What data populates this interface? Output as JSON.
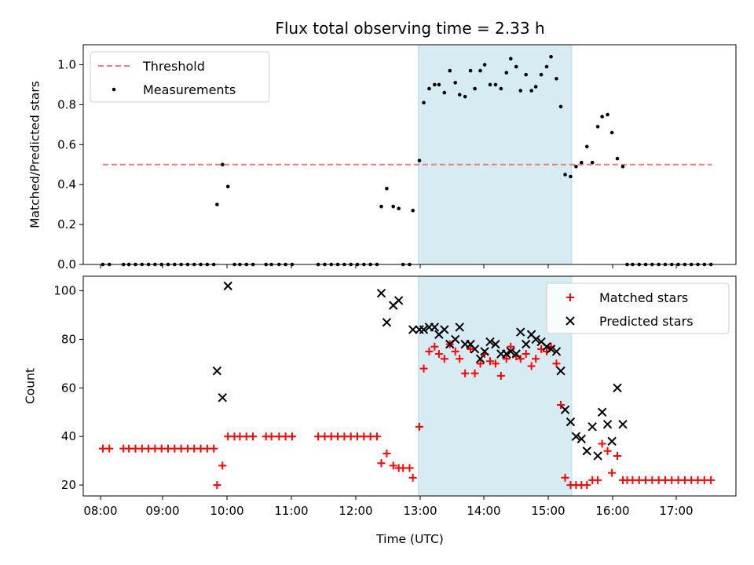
{
  "figure": {
    "title": "Flux total observing time = 2.33 h",
    "xlabel": "Time (UTC)"
  },
  "chart_data": [
    {
      "type": "scatter",
      "ylabel": "Matched/Predicted stars",
      "xlim": [
        "07:55",
        "17:55"
      ],
      "ylim": [
        0,
        1.1
      ],
      "yticks": [
        "0.0",
        "0.2",
        "0.4",
        "0.6",
        "0.8",
        "1.0"
      ],
      "xticks": [
        "08:00",
        "09:00",
        "10:00",
        "11:00",
        "12:00",
        "13:00",
        "14:00",
        "15:00",
        "16:00",
        "17:00"
      ],
      "highlight_span": {
        "from": "13:03",
        "to": "15:24"
      },
      "threshold": {
        "label": "Threshold",
        "value": 0.5,
        "from": "08:13",
        "to": "17:33",
        "color": "#f08080"
      },
      "legend": {
        "placement": "top-left",
        "entries": [
          "Threshold",
          "Measurements"
        ]
      },
      "series": [
        {
          "name": "Measurements",
          "color": "#000000",
          "points": [
            [
              "08:13",
              0
            ],
            [
              "08:19",
              0
            ],
            [
              "08:32",
              0
            ],
            [
              "08:37",
              0
            ],
            [
              "08:43",
              0
            ],
            [
              "08:49",
              0
            ],
            [
              "08:55",
              0
            ],
            [
              "09:01",
              0
            ],
            [
              "09:07",
              0
            ],
            [
              "09:13",
              0
            ],
            [
              "09:19",
              0
            ],
            [
              "09:25",
              0
            ],
            [
              "09:31",
              0
            ],
            [
              "09:37",
              0
            ],
            [
              "09:43",
              0
            ],
            [
              "09:49",
              0
            ],
            [
              "09:55",
              0
            ],
            [
              "09:58",
              0.3
            ],
            [
              "10:03",
              0.5
            ],
            [
              "10:08",
              0.39
            ],
            [
              "10:14",
              0
            ],
            [
              "10:19",
              0
            ],
            [
              "10:25",
              0
            ],
            [
              "10:31",
              0
            ],
            [
              "10:43",
              0
            ],
            [
              "10:48",
              0
            ],
            [
              "10:55",
              0
            ],
            [
              "11:01",
              0
            ],
            [
              "11:07",
              0
            ],
            [
              "11:31",
              0
            ],
            [
              "11:37",
              0
            ],
            [
              "11:43",
              0
            ],
            [
              "11:49",
              0
            ],
            [
              "11:55",
              0
            ],
            [
              "12:01",
              0
            ],
            [
              "12:07",
              0
            ],
            [
              "12:13",
              0
            ],
            [
              "12:19",
              0
            ],
            [
              "12:25",
              0
            ],
            [
              "12:29",
              0.29
            ],
            [
              "12:34",
              0.38
            ],
            [
              "12:40",
              0.29
            ],
            [
              "12:45",
              0.28
            ],
            [
              "12:49",
              0
            ],
            [
              "12:55",
              0
            ],
            [
              "12:58",
              0.27
            ],
            [
              "13:04",
              0.52
            ],
            [
              "13:08",
              0.81
            ],
            [
              "13:13",
              0.88
            ],
            [
              "13:18",
              0.9
            ],
            [
              "13:22",
              0.9
            ],
            [
              "13:27",
              0.86
            ],
            [
              "13:32",
              0.97
            ],
            [
              "13:37",
              0.91
            ],
            [
              "13:41",
              0.85
            ],
            [
              "13:46",
              0.84
            ],
            [
              "13:51",
              0.97
            ],
            [
              "13:55",
              0.88
            ],
            [
              "14:00",
              0.97
            ],
            [
              "14:04",
              1.0
            ],
            [
              "14:09",
              0.9
            ],
            [
              "14:14",
              0.9
            ],
            [
              "14:19",
              0.88
            ],
            [
              "14:24",
              0.96
            ],
            [
              "14:28",
              1.03
            ],
            [
              "14:33",
              0.99
            ],
            [
              "14:37",
              0.87
            ],
            [
              "14:42",
              0.95
            ],
            [
              "14:47",
              0.87
            ],
            [
              "14:51",
              0.89
            ],
            [
              "14:56",
              0.95
            ],
            [
              "15:01",
              0.99
            ],
            [
              "15:05",
              1.04
            ],
            [
              "15:10",
              0.93
            ],
            [
              "15:14",
              0.79
            ],
            [
              "15:18",
              0.45
            ],
            [
              "15:23",
              0.44
            ],
            [
              "15:28",
              0.49
            ],
            [
              "15:33",
              0.51
            ],
            [
              "15:38",
              0.59
            ],
            [
              "15:43",
              0.51
            ],
            [
              "15:48",
              0.69
            ],
            [
              "15:52",
              0.74
            ],
            [
              "15:57",
              0.75
            ],
            [
              "16:01",
              0.66
            ],
            [
              "16:06",
              0.53
            ],
            [
              "16:11",
              0.49
            ],
            [
              "16:15",
              0
            ],
            [
              "16:20",
              0
            ],
            [
              "16:26",
              0
            ],
            [
              "16:32",
              0
            ],
            [
              "16:38",
              0
            ],
            [
              "16:44",
              0
            ],
            [
              "16:50",
              0
            ],
            [
              "16:56",
              0
            ],
            [
              "17:02",
              0
            ],
            [
              "17:08",
              0
            ],
            [
              "17:14",
              0
            ],
            [
              "17:20",
              0
            ],
            [
              "17:26",
              0
            ],
            [
              "17:32",
              0
            ]
          ]
        }
      ]
    },
    {
      "type": "scatter",
      "ylabel": "Count",
      "xlim": [
        "07:55",
        "17:55"
      ],
      "ylim": [
        15.5,
        106
      ],
      "yticks": [
        "20",
        "40",
        "60",
        "80",
        "100"
      ],
      "xticks": [
        "08:00",
        "09:00",
        "10:00",
        "11:00",
        "12:00",
        "13:00",
        "14:00",
        "15:00",
        "16:00",
        "17:00"
      ],
      "highlight_span": {
        "from": "13:03",
        "to": "15:24"
      },
      "legend": {
        "placement": "top-right",
        "entries": [
          "Matched stars",
          "Predicted stars"
        ]
      },
      "series": [
        {
          "name": "Matched stars",
          "marker": "+",
          "color": "#ff0000",
          "points": [
            [
              "08:13",
              35
            ],
            [
              "08:19",
              35
            ],
            [
              "08:32",
              35
            ],
            [
              "08:37",
              35
            ],
            [
              "08:43",
              35
            ],
            [
              "08:49",
              35
            ],
            [
              "08:55",
              35
            ],
            [
              "09:01",
              35
            ],
            [
              "09:07",
              35
            ],
            [
              "09:13",
              35
            ],
            [
              "09:19",
              35
            ],
            [
              "09:25",
              35
            ],
            [
              "09:31",
              35
            ],
            [
              "09:37",
              35
            ],
            [
              "09:43",
              35
            ],
            [
              "09:49",
              35
            ],
            [
              "09:55",
              35
            ],
            [
              "09:58",
              20
            ],
            [
              "10:03",
              28
            ],
            [
              "10:08",
              40
            ],
            [
              "10:14",
              40
            ],
            [
              "10:19",
              40
            ],
            [
              "10:25",
              40
            ],
            [
              "10:31",
              40
            ],
            [
              "10:43",
              40
            ],
            [
              "10:48",
              40
            ],
            [
              "10:55",
              40
            ],
            [
              "11:01",
              40
            ],
            [
              "11:07",
              40
            ],
            [
              "11:31",
              40
            ],
            [
              "11:37",
              40
            ],
            [
              "11:43",
              40
            ],
            [
              "11:49",
              40
            ],
            [
              "11:55",
              40
            ],
            [
              "12:01",
              40
            ],
            [
              "12:07",
              40
            ],
            [
              "12:13",
              40
            ],
            [
              "12:19",
              40
            ],
            [
              "12:25",
              40
            ],
            [
              "12:29",
              29
            ],
            [
              "12:34",
              33
            ],
            [
              "12:40",
              28
            ],
            [
              "12:45",
              27
            ],
            [
              "12:49",
              27
            ],
            [
              "12:55",
              27
            ],
            [
              "12:58",
              23
            ],
            [
              "13:04",
              44
            ],
            [
              "13:08",
              68
            ],
            [
              "13:13",
              75
            ],
            [
              "13:18",
              77
            ],
            [
              "13:22",
              74
            ],
            [
              "13:27",
              72
            ],
            [
              "13:32",
              78
            ],
            [
              "13:37",
              75
            ],
            [
              "13:41",
              72
            ],
            [
              "13:46",
              66
            ],
            [
              "13:51",
              76
            ],
            [
              "13:55",
              66
            ],
            [
              "14:00",
              70
            ],
            [
              "14:04",
              74
            ],
            [
              "14:09",
              71
            ],
            [
              "14:14",
              70
            ],
            [
              "14:19",
              65
            ],
            [
              "14:24",
              72
            ],
            [
              "14:28",
              77
            ],
            [
              "14:33",
              73
            ],
            [
              "14:37",
              72
            ],
            [
              "14:42",
              74
            ],
            [
              "14:47",
              69
            ],
            [
              "14:51",
              72
            ],
            [
              "14:56",
              76
            ],
            [
              "15:01",
              75
            ],
            [
              "15:05",
              77
            ],
            [
              "15:10",
              70
            ],
            [
              "15:14",
              53
            ],
            [
              "15:18",
              23
            ],
            [
              "15:23",
              20
            ],
            [
              "15:28",
              20
            ],
            [
              "15:33",
              20
            ],
            [
              "15:38",
              20
            ],
            [
              "15:43",
              22
            ],
            [
              "15:48",
              22
            ],
            [
              "15:52",
              37
            ],
            [
              "15:57",
              34
            ],
            [
              "16:01",
              25
            ],
            [
              "16:06",
              32
            ],
            [
              "16:11",
              22
            ],
            [
              "16:15",
              22
            ],
            [
              "16:20",
              22
            ],
            [
              "16:26",
              22
            ],
            [
              "16:32",
              22
            ],
            [
              "16:38",
              22
            ],
            [
              "16:44",
              22
            ],
            [
              "16:50",
              22
            ],
            [
              "16:56",
              22
            ],
            [
              "17:02",
              22
            ],
            [
              "17:08",
              22
            ],
            [
              "17:14",
              22
            ],
            [
              "17:20",
              22
            ],
            [
              "17:26",
              22
            ],
            [
              "17:32",
              22
            ]
          ]
        },
        {
          "name": "Predicted stars",
          "marker": "x",
          "color": "#000000",
          "points": [
            [
              "09:58",
              67
            ],
            [
              "10:03",
              56
            ],
            [
              "10:08",
              102
            ],
            [
              "12:29",
              99
            ],
            [
              "12:34",
              87
            ],
            [
              "12:40",
              94
            ],
            [
              "12:45",
              96
            ],
            [
              "12:58",
              84
            ],
            [
              "13:04",
              84
            ],
            [
              "13:08",
              84
            ],
            [
              "13:13",
              85
            ],
            [
              "13:18",
              85
            ],
            [
              "13:22",
              82
            ],
            [
              "13:27",
              84
            ],
            [
              "13:32",
              78
            ],
            [
              "13:37",
              80
            ],
            [
              "13:41",
              85
            ],
            [
              "13:46",
              78
            ],
            [
              "13:51",
              78
            ],
            [
              "13:55",
              76
            ],
            [
              "14:00",
              72
            ],
            [
              "14:04",
              75
            ],
            [
              "14:09",
              79
            ],
            [
              "14:14",
              78
            ],
            [
              "14:19",
              74
            ],
            [
              "14:24",
              74
            ],
            [
              "14:28",
              75
            ],
            [
              "14:33",
              74
            ],
            [
              "14:37",
              83
            ],
            [
              "14:42",
              78
            ],
            [
              "14:47",
              82
            ],
            [
              "14:51",
              80
            ],
            [
              "14:56",
              79
            ],
            [
              "15:01",
              77
            ],
            [
              "15:05",
              76
            ],
            [
              "15:10",
              75
            ],
            [
              "15:14",
              67
            ],
            [
              "15:18",
              51
            ],
            [
              "15:23",
              46
            ],
            [
              "15:28",
              40
            ],
            [
              "15:33",
              39
            ],
            [
              "15:38",
              34
            ],
            [
              "15:43",
              44
            ],
            [
              "15:48",
              32
            ],
            [
              "15:52",
              50
            ],
            [
              "15:57",
              45
            ],
            [
              "16:01",
              38
            ],
            [
              "16:06",
              60
            ],
            [
              "16:11",
              45
            ]
          ]
        }
      ]
    }
  ]
}
